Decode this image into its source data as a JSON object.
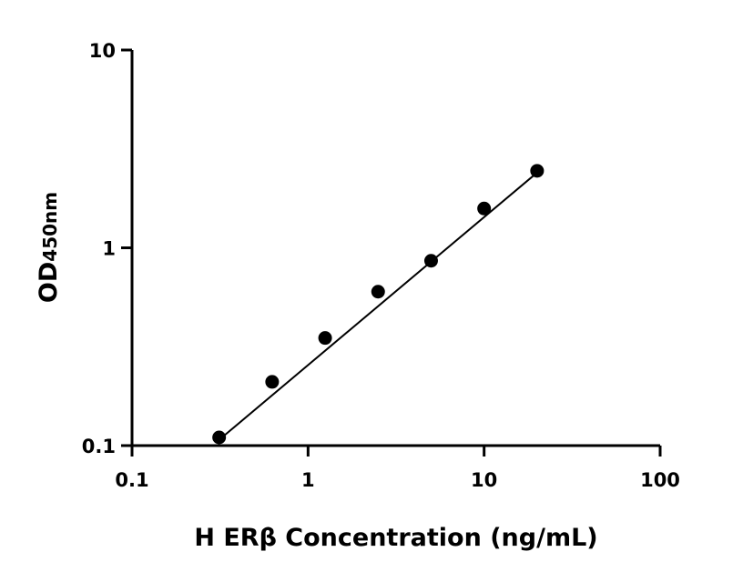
{
  "chart_data": {
    "type": "scatter",
    "x_label": "H ERβ Concentration (ng/mL)",
    "y_label": "OD",
    "y_label_subscript": "450nm",
    "x": [
      0.3125,
      0.625,
      1.25,
      2.5,
      5,
      10,
      20
    ],
    "values": [
      0.11,
      0.21,
      0.35,
      0.6,
      0.86,
      1.58,
      2.45
    ],
    "color": "#000000",
    "fit_line": {
      "x": [
        0.3125,
        20
      ],
      "values": [
        0.107,
        2.4
      ]
    },
    "x_log": true,
    "y_log": true,
    "xlim": [
      0.1,
      100
    ],
    "ylim": [
      0.1,
      10
    ],
    "xticks": [
      0.1,
      1,
      10,
      100
    ],
    "yticks": [
      0.1,
      1,
      10
    ]
  }
}
